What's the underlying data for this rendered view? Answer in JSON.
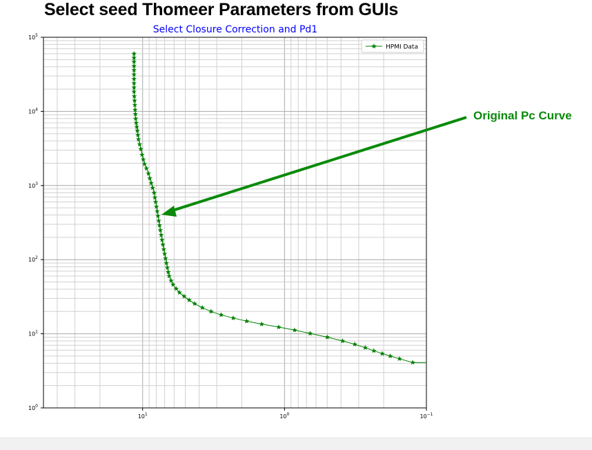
{
  "slide": {
    "title": "Select seed Thomeer  Parameters from GUIs",
    "annotation": "Original Pc Curve",
    "annotation_color": "#0a8a0a"
  },
  "chart_data": {
    "type": "line",
    "title": "Select Closure Correction and Pd1",
    "title_color": "#0000ff",
    "xlabel": "",
    "ylabel": "",
    "x_scale": "log",
    "x_reversed": true,
    "xlim": [
      50,
      0.1
    ],
    "y_scale": "log",
    "ylim": [
      1,
      100000
    ],
    "x_ticks": [
      {
        "value": 10,
        "base": "10",
        "exp": "1"
      },
      {
        "value": 1,
        "base": "10",
        "exp": "0"
      },
      {
        "value": 0.1,
        "base": "10",
        "exp": "−1"
      }
    ],
    "y_ticks": [
      {
        "value": 1,
        "base": "10",
        "exp": "0"
      },
      {
        "value": 10,
        "base": "10",
        "exp": "1"
      },
      {
        "value": 100,
        "base": "10",
        "exp": "2"
      },
      {
        "value": 1000,
        "base": "10",
        "exp": "3"
      },
      {
        "value": 10000,
        "base": "10",
        "exp": "4"
      },
      {
        "value": 100000,
        "base": "10",
        "exp": "5"
      }
    ],
    "grid": true,
    "legend_position": "top-right",
    "series": [
      {
        "name": "HPMI Data",
        "color": "#008000",
        "marker": "star",
        "points": [
          [
            11.5,
            60000
          ],
          [
            11.5,
            53000
          ],
          [
            11.5,
            47000
          ],
          [
            11.5,
            41000
          ],
          [
            11.5,
            36000
          ],
          [
            11.5,
            31500
          ],
          [
            11.5,
            27500
          ],
          [
            11.5,
            24000
          ],
          [
            11.5,
            21000
          ],
          [
            11.5,
            18500
          ],
          [
            11.45,
            16000
          ],
          [
            11.4,
            14000
          ],
          [
            11.35,
            12200
          ],
          [
            11.3,
            10500
          ],
          [
            11.25,
            9200
          ],
          [
            11.2,
            8000
          ],
          [
            11.1,
            7000
          ],
          [
            11.0,
            6200
          ],
          [
            10.9,
            5500
          ],
          [
            10.8,
            4800
          ],
          [
            10.7,
            4200
          ],
          [
            10.5,
            3600
          ],
          [
            10.3,
            3100
          ],
          [
            10.1,
            2600
          ],
          [
            9.9,
            2250
          ],
          [
            9.7,
            1950
          ],
          [
            9.4,
            1700
          ],
          [
            9.1,
            1450
          ],
          [
            8.9,
            1250
          ],
          [
            8.7,
            1080
          ],
          [
            8.5,
            930
          ],
          [
            8.3,
            800
          ],
          [
            8.2,
            690
          ],
          [
            8.1,
            600
          ],
          [
            8.0,
            520
          ],
          [
            7.9,
            450
          ],
          [
            7.8,
            390
          ],
          [
            7.7,
            335
          ],
          [
            7.6,
            290
          ],
          [
            7.5,
            250
          ],
          [
            7.4,
            215
          ],
          [
            7.3,
            185
          ],
          [
            7.2,
            160
          ],
          [
            7.1,
            138
          ],
          [
            7.0,
            120
          ],
          [
            6.9,
            104
          ],
          [
            6.8,
            90
          ],
          [
            6.7,
            78
          ],
          [
            6.6,
            68
          ],
          [
            6.5,
            60
          ],
          [
            6.3,
            52
          ],
          [
            6.1,
            46
          ],
          [
            5.8,
            40.5
          ],
          [
            5.5,
            36
          ],
          [
            5.1,
            32
          ],
          [
            4.7,
            28.5
          ],
          [
            4.3,
            25.5
          ],
          [
            3.8,
            22.5
          ],
          [
            3.3,
            20
          ],
          [
            2.8,
            18
          ],
          [
            2.3,
            16.3
          ],
          [
            1.85,
            14.8
          ],
          [
            1.45,
            13.5
          ],
          [
            1.1,
            12.3
          ],
          [
            0.85,
            11.2
          ],
          [
            0.66,
            10.1
          ],
          [
            0.5,
            9.0
          ],
          [
            0.39,
            8.0
          ],
          [
            0.32,
            7.2
          ],
          [
            0.27,
            6.5
          ],
          [
            0.235,
            5.9
          ],
          [
            0.205,
            5.4
          ],
          [
            0.18,
            5.0
          ],
          [
            0.155,
            4.6
          ],
          [
            0.125,
            4.1
          ]
        ],
        "line_to_edge_y": 4.1
      }
    ],
    "annotation_arrow": {
      "text": "Original Pc Curve",
      "points_to": [
        7.6,
        430
      ]
    }
  }
}
